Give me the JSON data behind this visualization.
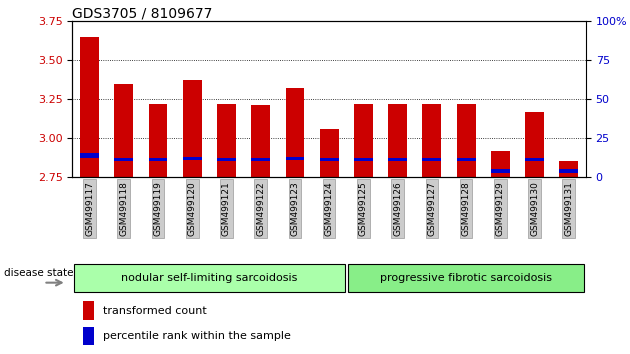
{
  "title": "GDS3705 / 8109677",
  "samples": [
    "GSM499117",
    "GSM499118",
    "GSM499119",
    "GSM499120",
    "GSM499121",
    "GSM499122",
    "GSM499123",
    "GSM499124",
    "GSM499125",
    "GSM499126",
    "GSM499127",
    "GSM499128",
    "GSM499129",
    "GSM499130",
    "GSM499131"
  ],
  "red_tops": [
    3.65,
    3.35,
    3.22,
    3.37,
    3.22,
    3.21,
    3.32,
    3.06,
    3.22,
    3.22,
    3.22,
    3.22,
    2.92,
    3.17,
    2.85
  ],
  "blue_bottoms": [
    2.87,
    2.855,
    2.855,
    2.86,
    2.855,
    2.855,
    2.86,
    2.855,
    2.855,
    2.855,
    2.855,
    2.855,
    2.775,
    2.855,
    2.775
  ],
  "blue_tops": [
    2.905,
    2.875,
    2.87,
    2.876,
    2.87,
    2.87,
    2.876,
    2.87,
    2.87,
    2.87,
    2.87,
    2.87,
    2.8,
    2.87,
    2.8
  ],
  "bar_bottom": 2.75,
  "ylim_left": [
    2.75,
    3.75
  ],
  "ylim_right": [
    0,
    100
  ],
  "yticks_left": [
    2.75,
    3.0,
    3.25,
    3.5,
    3.75
  ],
  "yticks_right": [
    0,
    25,
    50,
    75,
    100
  ],
  "group1_label": "nodular self-limiting sarcoidosis",
  "group2_label": "progressive fibrotic sarcoidosis",
  "group1_count": 8,
  "group2_count": 7,
  "disease_state_label": "disease state",
  "legend_red_label": "transformed count",
  "legend_blue_label": "percentile rank within the sample",
  "bar_color_red": "#cc0000",
  "bar_color_blue": "#0000cc",
  "group1_color": "#aaffaa",
  "group2_color": "#88ee88",
  "bar_width": 0.55,
  "background_color": "#ffffff",
  "tick_label_color_left": "#cc0000",
  "tick_label_color_right": "#0000cc",
  "title_fontsize": 10,
  "axis_fontsize": 8,
  "legend_fontsize": 8,
  "group_fontsize": 8
}
